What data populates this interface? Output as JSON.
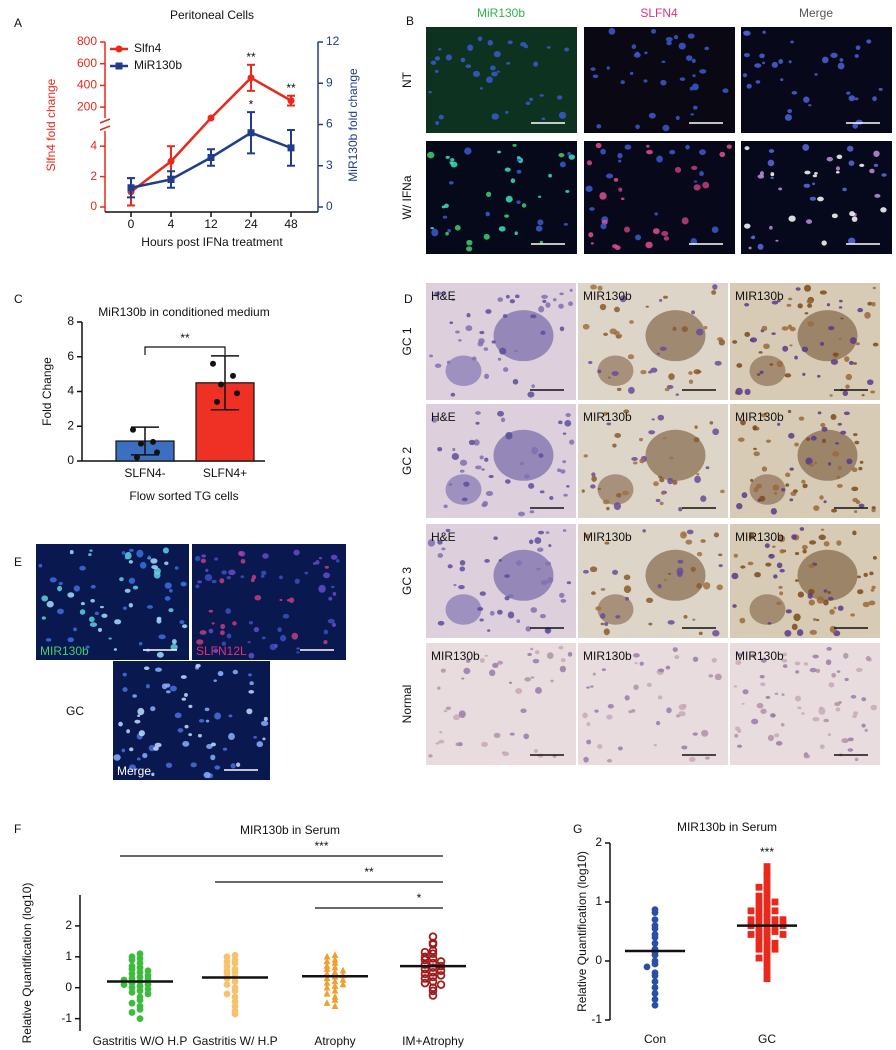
{
  "panel_labels": [
    "A",
    "B",
    "C",
    "D",
    "E",
    "F",
    "G"
  ],
  "chart_data": [
    {
      "type": "line",
      "title": "Peritoneal Cells",
      "xlabel": "Hours post IFNa treatment",
      "ylabel": "Slfn4 fold change",
      "y2label": "MiR130b fold change",
      "categories": [
        "0",
        "4",
        "12",
        "24",
        "48"
      ],
      "y_segments": [
        {
          "ylim": [
            0,
            5
          ],
          "yticks": [
            0,
            2,
            4
          ]
        },
        {
          "ylim": [
            100,
            800
          ],
          "yticks": [
            200,
            400,
            600,
            800
          ]
        }
      ],
      "y2lim": [
        0,
        12
      ],
      "y2ticks": [
        0,
        3,
        6,
        9,
        12
      ],
      "series": [
        {
          "name": "Slfn4",
          "color": "#e8291c",
          "marker": "circle",
          "values": [
            1,
            3,
            100,
            470,
            260
          ],
          "errors": [
            0.9,
            1,
            null,
            120,
            45
          ],
          "significance": [
            null,
            null,
            null,
            "**",
            "**"
          ]
        },
        {
          "name": "MiR130b",
          "color": "#1f3d8c",
          "marker": "square",
          "axis": "y2",
          "values": [
            1.4,
            2,
            3.6,
            5.4,
            4.3
          ],
          "errors": [
            0.7,
            0.6,
            0.6,
            1.5,
            1.3
          ],
          "significance": [
            null,
            null,
            null,
            "*",
            null
          ]
        }
      ]
    },
    {
      "type": "bar",
      "title": "MiR130b in conditioned medium",
      "ylabel": "Fold Change",
      "xlabel": "Flow sorted TG cells",
      "categories": [
        "SLFN4-",
        "SLFN4+"
      ],
      "values": [
        1.15,
        4.5
      ],
      "errors": [
        0.8,
        1.55
      ],
      "colors": [
        "#3c6fbf",
        "#ee3124"
      ],
      "points": [
        [
          1.8,
          1.1,
          1.0,
          0.5,
          0.2
        ],
        [
          5.6,
          4.9,
          4.4,
          3.9,
          3.4
        ]
      ],
      "ylim": [
        0,
        8
      ],
      "yticks": [
        0,
        2,
        4,
        6,
        8
      ],
      "comparisons": [
        {
          "from": 0,
          "to": 1,
          "label": "**"
        }
      ]
    },
    {
      "type": "dotplot",
      "title": "MIR130b in Serum",
      "ylabel": "Relative Quantification (log10)",
      "categories": [
        "Gastritis W/O H.P",
        "Gastritis W/ H.P",
        "Atrophy",
        "IM+Atrophy"
      ],
      "colors": [
        "#3dbb3d",
        "#f7c26b",
        "#f0a030",
        "#9e1b1b"
      ],
      "markers": [
        "circle",
        "circle",
        "triangle",
        "open-circle"
      ],
      "points": [
        [
          1.1,
          1.0,
          0.95,
          0.9,
          0.8,
          0.7,
          0.65,
          0.6,
          0.55,
          0.5,
          0.45,
          0.4,
          0.35,
          0.3,
          0.3,
          0.25,
          0.2,
          0.15,
          0.1,
          0.1,
          0.05,
          0.0,
          -0.05,
          -0.1,
          -0.15,
          -0.2,
          -0.3,
          -0.4,
          -0.5,
          -0.6,
          -0.7,
          -0.8,
          -1.0
        ],
        [
          1.05,
          1.0,
          0.9,
          0.85,
          0.8,
          0.7,
          0.6,
          0.55,
          0.5,
          0.45,
          0.35,
          0.3,
          0.2,
          0.1,
          0.0,
          -0.1,
          -0.2,
          -0.3,
          -0.45,
          -0.6,
          -0.75,
          -0.85
        ],
        [
          1.05,
          1.0,
          0.9,
          0.85,
          0.8,
          0.7,
          0.65,
          0.6,
          0.55,
          0.5,
          0.45,
          0.4,
          0.35,
          0.3,
          0.25,
          0.2,
          0.15,
          0.1,
          0.05,
          0.0,
          -0.1,
          -0.2,
          -0.3,
          -0.4,
          -0.5,
          -0.6
        ],
        [
          1.65,
          1.45,
          1.4,
          1.2,
          1.15,
          1.1,
          1.0,
          0.95,
          0.9,
          0.85,
          0.8,
          0.75,
          0.7,
          0.65,
          0.6,
          0.55,
          0.5,
          0.45,
          0.4,
          0.35,
          0.3,
          0.2,
          0.15,
          0.1,
          0.0,
          -0.1,
          -0.25
        ]
      ],
      "means": [
        0.2,
        0.33,
        0.37,
        0.7
      ],
      "ylim": [
        -1.4,
        3
      ],
      "yticks": [
        -1,
        0,
        1,
        2
      ],
      "comparisons": [
        {
          "from": 0,
          "to": 3,
          "label": "***"
        },
        {
          "from": 1,
          "to": 3,
          "label": "**"
        },
        {
          "from": 2,
          "to": 3,
          "label": "*"
        }
      ]
    },
    {
      "type": "dotplot",
      "title": "MIR130b in Serum",
      "ylabel": "Relative Quantification (log10)",
      "categories": [
        "Con",
        "GC"
      ],
      "colors": [
        "#2b4fa3",
        "#e8291c"
      ],
      "markers": [
        "circle",
        "square"
      ],
      "points": [
        [
          0.87,
          0.82,
          0.7,
          0.6,
          0.55,
          0.45,
          0.4,
          0.3,
          0.2,
          0.15,
          0.1,
          0.0,
          -0.05,
          -0.1,
          -0.2,
          -0.25,
          -0.35,
          -0.45,
          -0.55,
          -0.65,
          -0.75
        ],
        [
          1.6,
          1.5,
          1.45,
          1.35,
          1.3,
          1.25,
          1.2,
          1.15,
          1.1,
          1.05,
          1.0,
          1.0,
          0.95,
          0.9,
          0.9,
          0.85,
          0.85,
          0.8,
          0.8,
          0.75,
          0.75,
          0.7,
          0.7,
          0.7,
          0.65,
          0.65,
          0.6,
          0.6,
          0.6,
          0.55,
          0.55,
          0.5,
          0.5,
          0.5,
          0.45,
          0.45,
          0.4,
          0.4,
          0.35,
          0.3,
          0.3,
          0.25,
          0.2,
          0.2,
          0.15,
          0.1,
          0.05,
          0.0,
          -0.1,
          -0.2,
          -0.3
        ]
      ],
      "means": [
        0.17,
        0.6
      ],
      "ylim": [
        -1,
        2
      ],
      "yticks": [
        -1,
        0,
        1,
        2
      ],
      "significance": [
        null,
        "***"
      ]
    }
  ],
  "micrographs": {
    "B": {
      "columns": [
        "MiR130b",
        "SLFN4",
        "Merge"
      ],
      "rows": [
        "NT",
        "W/ IFNa"
      ]
    },
    "D": {
      "rows": [
        "GC 1",
        "GC 2",
        "GC 3",
        "Normal"
      ],
      "labels": [
        [
          "H&E",
          "MIR130b",
          "MIR130b"
        ],
        [
          "H&E",
          "MIR130b",
          "MIR130b"
        ],
        [
          "H&E",
          "MIR130b",
          "MIR130b"
        ],
        [
          "MIR130b",
          "MIR130b",
          "MIR130b"
        ]
      ]
    },
    "E": {
      "labels": [
        "MIR130b",
        "SLFN12L",
        "Merge"
      ],
      "row": "GC"
    }
  }
}
